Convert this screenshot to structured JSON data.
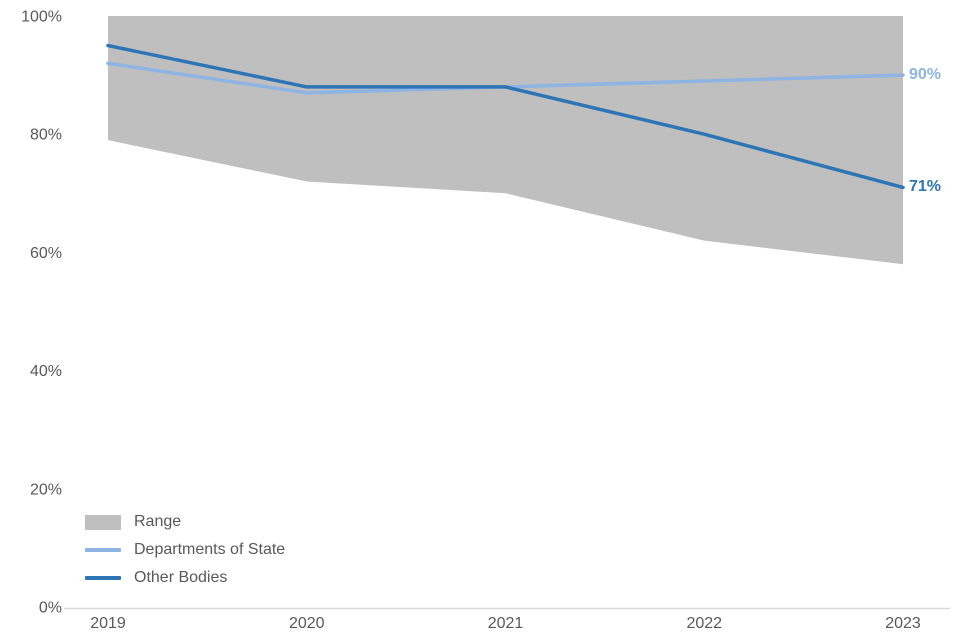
{
  "chart": {
    "title": "",
    "background_color": "#FFFFFF",
    "axis_line_color": "#D9D9D9",
    "tick_label_color": "#595959",
    "legend_label_color": "#595959"
  },
  "chart_data": {
    "type": "line",
    "categories": [
      "2019",
      "2020",
      "2021",
      "2022",
      "2023"
    ],
    "series": [
      {
        "name": "Range",
        "kind": "area-band",
        "color": "#BFBFBF",
        "upper": [
          100,
          100,
          100,
          100,
          100
        ],
        "lower": [
          79,
          72,
          70,
          62,
          58
        ]
      },
      {
        "name": "Departments of State",
        "kind": "line",
        "color": "#8EB4E3",
        "values": [
          92,
          87,
          88,
          89,
          90
        ],
        "end_label": "90%"
      },
      {
        "name": "Other Bodies",
        "kind": "line",
        "color": "#2E75B6",
        "values": [
          95,
          88,
          88,
          80,
          71
        ],
        "end_label": "71%"
      }
    ],
    "ylim": [
      0,
      100
    ],
    "y_tick_values": [
      0,
      20,
      40,
      60,
      80,
      100
    ],
    "y_tick_labels": [
      "0%",
      "20%",
      "40%",
      "60%",
      "80%",
      "100%"
    ],
    "xlabel": "",
    "ylabel": "",
    "grid": false,
    "legend_position": "inside-bottom-left"
  }
}
